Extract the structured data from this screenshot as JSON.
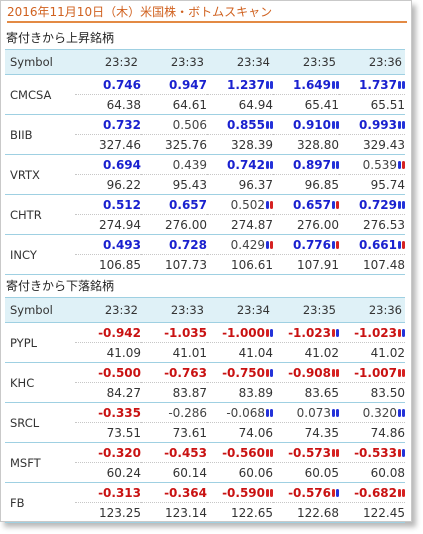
{
  "page_title": "2016年11月10日（木）米国株・ボトムスキャン",
  "colors": {
    "accent": "#d0611f",
    "header_bg": "#dff1f7",
    "up_value": "#1a21cf",
    "down_value": "#c91212",
    "marker_blue": "#2432d9",
    "marker_red": "#d62222"
  },
  "sections": [
    {
      "title": "寄付きから上昇銘柄",
      "header": {
        "symbol": "Symbol",
        "times": [
          "23:32",
          "23:33",
          "23:34",
          "23:35",
          "23:36"
        ]
      },
      "rows": [
        {
          "symbol": "CMCSA",
          "cells": [
            {
              "value": "0.746",
              "price": "64.38",
              "style": "up",
              "markers": []
            },
            {
              "value": "0.947",
              "price": "64.61",
              "style": "up",
              "markers": []
            },
            {
              "value": "1.237",
              "price": "64.94",
              "style": "up",
              "markers": [
                "blue",
                "blue"
              ]
            },
            {
              "value": "1.649",
              "price": "65.41",
              "style": "up",
              "markers": [
                "blue",
                "blue"
              ]
            },
            {
              "value": "1.737",
              "price": "65.51",
              "style": "up",
              "markers": [
                "blue",
                "blue"
              ]
            }
          ]
        },
        {
          "symbol": "BIIB",
          "cells": [
            {
              "value": "0.732",
              "price": "327.46",
              "style": "up",
              "markers": []
            },
            {
              "value": "0.506",
              "price": "325.76",
              "style": "up-n",
              "markers": []
            },
            {
              "value": "0.855",
              "price": "328.39",
              "style": "up",
              "markers": [
                "blue",
                "blue"
              ]
            },
            {
              "value": "0.910",
              "price": "328.80",
              "style": "up",
              "markers": [
                "blue",
                "blue"
              ]
            },
            {
              "value": "0.993",
              "price": "329.43",
              "style": "up",
              "markers": [
                "blue",
                "blue"
              ]
            }
          ]
        },
        {
          "symbol": "VRTX",
          "cells": [
            {
              "value": "0.694",
              "price": "96.22",
              "style": "up",
              "markers": []
            },
            {
              "value": "0.439",
              "price": "95.43",
              "style": "up-n",
              "markers": []
            },
            {
              "value": "0.742",
              "price": "96.37",
              "style": "up",
              "markers": [
                "blue",
                "blue"
              ]
            },
            {
              "value": "0.897",
              "price": "96.85",
              "style": "up",
              "markers": [
                "blue",
                "blue"
              ]
            },
            {
              "value": "0.539",
              "price": "95.74",
              "style": "up-n",
              "markers": [
                "blue",
                "red"
              ]
            }
          ]
        },
        {
          "symbol": "CHTR",
          "cells": [
            {
              "value": "0.512",
              "price": "274.94",
              "style": "up",
              "markers": []
            },
            {
              "value": "0.657",
              "price": "276.00",
              "style": "up",
              "markers": []
            },
            {
              "value": "0.502",
              "price": "274.87",
              "style": "up-n",
              "markers": [
                "blue",
                "red"
              ]
            },
            {
              "value": "0.657",
              "price": "276.00",
              "style": "up",
              "markers": [
                "blue",
                "red"
              ]
            },
            {
              "value": "0.729",
              "price": "276.53",
              "style": "up",
              "markers": [
                "blue",
                "blue"
              ]
            }
          ]
        },
        {
          "symbol": "INCY",
          "cells": [
            {
              "value": "0.493",
              "price": "106.85",
              "style": "up",
              "markers": []
            },
            {
              "value": "0.728",
              "price": "107.73",
              "style": "up",
              "markers": []
            },
            {
              "value": "0.429",
              "price": "106.61",
              "style": "up-n",
              "markers": [
                "blue",
                "red"
              ]
            },
            {
              "value": "0.776",
              "price": "107.91",
              "style": "up",
              "markers": [
                "blue",
                "red"
              ]
            },
            {
              "value": "0.661",
              "price": "107.48",
              "style": "up",
              "markers": [
                "blue",
                "red"
              ]
            }
          ]
        }
      ]
    },
    {
      "title": "寄付きから下落銘柄",
      "header": {
        "symbol": "Symbol",
        "times": [
          "23:32",
          "23:33",
          "23:34",
          "23:35",
          "23:36"
        ]
      },
      "rows": [
        {
          "symbol": "PYPL",
          "cells": [
            {
              "value": "-0.942",
              "price": "41.09",
              "style": "dn",
              "markers": []
            },
            {
              "value": "-1.035",
              "price": "41.01",
              "style": "dn",
              "markers": []
            },
            {
              "value": "-1.000",
              "price": "41.04",
              "style": "dn",
              "markers": [
                "red",
                "blue"
              ]
            },
            {
              "value": "-1.023",
              "price": "41.02",
              "style": "dn",
              "markers": [
                "red",
                "blue"
              ]
            },
            {
              "value": "-1.023",
              "price": "41.02",
              "style": "dn",
              "markers": [
                "red",
                "blue"
              ]
            }
          ]
        },
        {
          "symbol": "KHC",
          "cells": [
            {
              "value": "-0.500",
              "price": "84.27",
              "style": "dn",
              "markers": []
            },
            {
              "value": "-0.763",
              "price": "83.87",
              "style": "dn",
              "markers": []
            },
            {
              "value": "-0.750",
              "price": "83.89",
              "style": "dn",
              "markers": [
                "red",
                "blue"
              ]
            },
            {
              "value": "-0.908",
              "price": "83.65",
              "style": "dn",
              "markers": [
                "red",
                "red"
              ]
            },
            {
              "value": "-1.007",
              "price": "83.50",
              "style": "dn",
              "markers": [
                "red",
                "red"
              ]
            }
          ]
        },
        {
          "symbol": "SRCL",
          "cells": [
            {
              "value": "-0.335",
              "price": "73.51",
              "style": "dn",
              "markers": []
            },
            {
              "value": "-0.286",
              "price": "73.61",
              "style": "dn-n",
              "markers": []
            },
            {
              "value": "-0.068",
              "price": "74.06",
              "style": "dn-n",
              "markers": [
                "blue",
                "blue"
              ]
            },
            {
              "value": "0.073",
              "price": "74.35",
              "style": "up-n",
              "markers": [
                "blue",
                "blue"
              ]
            },
            {
              "value": "0.320",
              "price": "74.86",
              "style": "up-n",
              "markers": [
                "blue",
                "blue"
              ]
            }
          ]
        },
        {
          "symbol": "MSFT",
          "cells": [
            {
              "value": "-0.320",
              "price": "60.24",
              "style": "dn",
              "markers": []
            },
            {
              "value": "-0.453",
              "price": "60.14",
              "style": "dn",
              "markers": []
            },
            {
              "value": "-0.560",
              "price": "60.06",
              "style": "dn",
              "markers": [
                "red",
                "red"
              ]
            },
            {
              "value": "-0.573",
              "price": "60.05",
              "style": "dn",
              "markers": [
                "red",
                "red"
              ]
            },
            {
              "value": "-0.533",
              "price": "60.08",
              "style": "dn",
              "markers": [
                "red",
                "blue"
              ]
            }
          ]
        },
        {
          "symbol": "FB",
          "cells": [
            {
              "value": "-0.313",
              "price": "123.25",
              "style": "dn",
              "markers": []
            },
            {
              "value": "-0.364",
              "price": "123.14",
              "style": "dn",
              "markers": []
            },
            {
              "value": "-0.590",
              "price": "122.65",
              "style": "dn",
              "markers": [
                "red",
                "red"
              ]
            },
            {
              "value": "-0.576",
              "price": "122.68",
              "style": "dn",
              "markers": [
                "red",
                "blue"
              ]
            },
            {
              "value": "-0.682",
              "price": "122.45",
              "style": "dn",
              "markers": [
                "red",
                "red"
              ]
            }
          ]
        }
      ]
    }
  ]
}
